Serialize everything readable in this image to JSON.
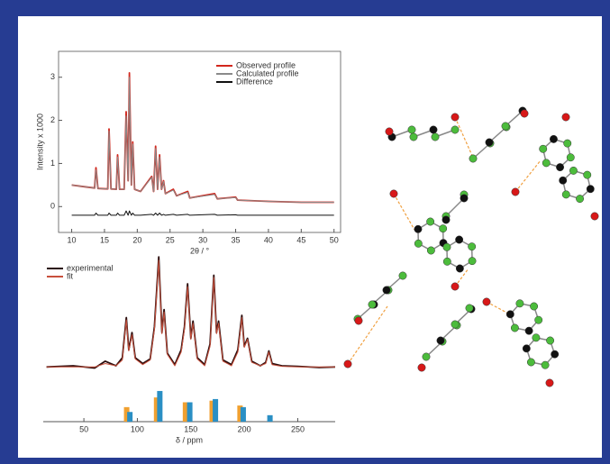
{
  "chart_data": [
    {
      "type": "line",
      "y_label": "Intensity x 1000",
      "x_label": "2θ / °",
      "legend": "upper right",
      "frame": true,
      "x": [
        10,
        12,
        13.5,
        13.7,
        14,
        15.5,
        15.7,
        16,
        16.8,
        17,
        17.3,
        18,
        18.3,
        18.6,
        18.8,
        19.1,
        19.3,
        19.6,
        20.5,
        22.2,
        22.5,
        22.8,
        23.1,
        23.4,
        23.7,
        24,
        24.3,
        25.5,
        26,
        27.7,
        28,
        31.8,
        32.2,
        35,
        35.3,
        40,
        45,
        50
      ],
      "series": [
        {
          "name": "Observed profile",
          "color": "#d2261c",
          "values": [
            0.5,
            0.46,
            0.43,
            0.9,
            0.42,
            0.41,
            1.8,
            0.41,
            0.4,
            1.2,
            0.4,
            0.4,
            2.2,
            0.6,
            3.1,
            0.5,
            1.5,
            0.4,
            0.35,
            0.7,
            0.35,
            1.4,
            0.4,
            1.2,
            0.4,
            0.6,
            0.3,
            0.4,
            0.25,
            0.35,
            0.2,
            0.3,
            0.18,
            0.22,
            0.15,
            0.12,
            0.1,
            0.1
          ]
        },
        {
          "name": "Calculated profile",
          "color": "#8a8a8a",
          "values": [
            0.5,
            0.46,
            0.43,
            0.85,
            0.42,
            0.41,
            1.75,
            0.41,
            0.4,
            1.15,
            0.4,
            0.4,
            2.1,
            0.6,
            3.0,
            0.5,
            1.45,
            0.4,
            0.35,
            0.68,
            0.35,
            1.35,
            0.4,
            1.15,
            0.4,
            0.58,
            0.3,
            0.38,
            0.25,
            0.33,
            0.2,
            0.28,
            0.18,
            0.21,
            0.15,
            0.12,
            0.1,
            0.1
          ]
        },
        {
          "name": "Difference",
          "color": "#111111",
          "values": [
            -0.2,
            -0.2,
            -0.2,
            -0.15,
            -0.2,
            -0.2,
            -0.15,
            -0.2,
            -0.2,
            -0.15,
            -0.2,
            -0.2,
            -0.1,
            -0.2,
            -0.1,
            -0.2,
            -0.15,
            -0.2,
            -0.2,
            -0.18,
            -0.2,
            -0.15,
            -0.2,
            -0.15,
            -0.2,
            -0.18,
            -0.2,
            -0.18,
            -0.2,
            -0.18,
            -0.2,
            -0.18,
            -0.2,
            -0.19,
            -0.2,
            -0.2,
            -0.2,
            -0.2
          ]
        }
      ],
      "xlim": [
        8,
        51
      ],
      "ylim": [
        -0.6,
        3.6
      ],
      "xticks": [
        10,
        15,
        20,
        25,
        30,
        35,
        40,
        45,
        50
      ],
      "yticks": [
        0,
        1,
        2,
        3
      ]
    },
    {
      "type": "line",
      "legend": "upper left",
      "x": [
        15,
        40,
        60,
        70,
        80,
        86,
        89.7,
        92,
        95,
        98,
        105,
        112,
        116,
        120,
        123,
        125,
        128,
        135,
        141,
        144,
        147,
        150,
        152,
        156,
        163,
        168,
        171.5,
        174,
        176,
        180,
        188,
        194,
        197.7,
        200,
        203,
        207,
        215,
        220,
        223,
        226,
        235,
        250,
        270,
        285
      ],
      "series": [
        {
          "name": "experimental",
          "color": "#2a0c0c",
          "values": [
            0,
            0.1,
            -0.1,
            0.5,
            0.1,
            0.8,
            4.3,
            1.5,
            3.0,
            0.8,
            0.3,
            0.7,
            3.5,
            9.6,
            3.0,
            5.0,
            1.2,
            0.2,
            1.5,
            3.5,
            7.25,
            2.5,
            4.0,
            0.8,
            0.2,
            2.0,
            8.0,
            3.0,
            4.0,
            0.6,
            0.2,
            1.5,
            4.5,
            1.8,
            2.5,
            0.5,
            0.1,
            0.4,
            1.4,
            0.3,
            0.1,
            0.05,
            -0.05,
            0
          ]
        },
        {
          "name": "fit",
          "color": "#c8503c",
          "values": [
            0,
            0,
            0,
            0.3,
            0.1,
            0.6,
            4.1,
            1.4,
            2.8,
            0.7,
            0.2,
            0.6,
            3.3,
            9.3,
            2.9,
            4.8,
            1.1,
            0.1,
            1.3,
            3.3,
            7.0,
            2.4,
            3.8,
            0.7,
            0.1,
            1.8,
            7.8,
            2.9,
            3.8,
            0.5,
            0.1,
            1.3,
            4.3,
            1.7,
            2.4,
            0.4,
            0.1,
            0.3,
            1.3,
            0.2,
            0.05,
            0,
            0,
            0
          ]
        }
      ],
      "xlim": [
        12,
        285
      ],
      "ylim": [
        -1,
        10
      ]
    },
    {
      "type": "bar",
      "x_label": "δ / ppm",
      "series": [
        {
          "color": "#f0a030",
          "x": [
            90,
            118,
            145,
            170,
            196
          ],
          "values": [
            0.45,
            0.75,
            0.6,
            0.65,
            0.5
          ]
        },
        {
          "color": "#2a8fc4",
          "x": [
            93,
            121,
            149,
            173,
            199,
            224
          ],
          "values": [
            0.3,
            0.95,
            0.6,
            0.7,
            0.45,
            0.2
          ]
        }
      ],
      "xlim": [
        12,
        285
      ],
      "ylim": [
        0,
        1.2
      ],
      "xticks": [
        50,
        100,
        150,
        200,
        250
      ]
    }
  ]
}
